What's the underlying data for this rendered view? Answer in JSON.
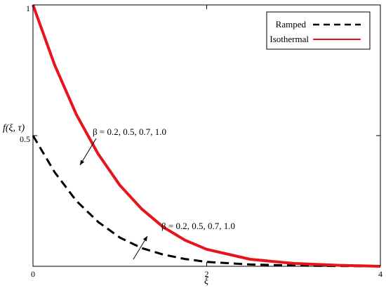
{
  "chart_data": {
    "type": "line",
    "title": "",
    "xlabel": "ξ",
    "ylabel": "f(ξ, τ)",
    "xlim": [
      0,
      4
    ],
    "ylim": [
      0,
      1
    ],
    "grid": false,
    "legend_position": "top-right",
    "x_ticks": [
      {
        "value": 0,
        "label": "0"
      },
      {
        "value": 2,
        "label": "2"
      },
      {
        "value": 4,
        "label": "4"
      }
    ],
    "y_ticks": [
      {
        "value": 0.5,
        "label": "0.5"
      },
      {
        "value": 1,
        "label": "1"
      }
    ],
    "series": [
      {
        "name": "Ramped",
        "style": "dashed",
        "color": "#000000",
        "x": [
          0,
          0.25,
          0.5,
          0.75,
          1.0,
          1.25,
          1.5,
          1.75,
          2.0,
          2.5,
          3.0,
          3.5,
          4.0
        ],
        "y": [
          0.5,
          0.36,
          0.25,
          0.17,
          0.11,
          0.07,
          0.045,
          0.028,
          0.017,
          0.007,
          0.003,
          0.001,
          0.0
        ]
      },
      {
        "name": "Isothermal",
        "style": "solid",
        "color": "#e8141b",
        "x": [
          0,
          0.25,
          0.5,
          0.75,
          1.0,
          1.25,
          1.5,
          1.75,
          2.0,
          2.5,
          3.0,
          3.5,
          4.0
        ],
        "y": [
          1.0,
          0.77,
          0.58,
          0.43,
          0.31,
          0.22,
          0.15,
          0.1,
          0.065,
          0.027,
          0.011,
          0.004,
          0.0
        ]
      }
    ],
    "annotations": [
      {
        "text": "β = 0.2, 0.5, 0.7, 1.0",
        "target_series": "Isothermal"
      },
      {
        "text": "β = 0.2, 0.5, 0.7, 1.0",
        "target_series": "Ramped"
      }
    ]
  }
}
